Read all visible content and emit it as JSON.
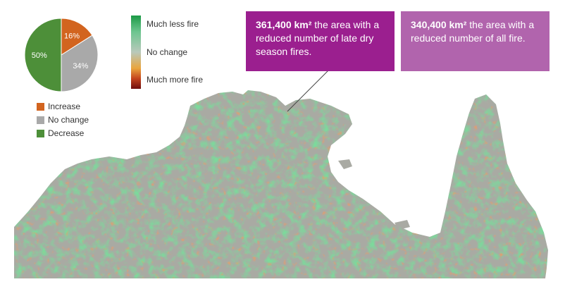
{
  "colors": {
    "increase": "#d2641f",
    "no_change": "#a9a9a9",
    "decrease": "#4d8f39",
    "callout1": "#9b1f8f",
    "callout2": "#b164ad",
    "sea": "#ffffff",
    "land_base": "#a9aaa3",
    "fire_less": "#3bb35a",
    "fire_more": "#c8522a"
  },
  "chart_data": {
    "type": "pie",
    "slices": [
      {
        "label": "Increase",
        "value": 16,
        "value_label": "16%"
      },
      {
        "label": "No change",
        "value": 34,
        "value_label": "34%"
      },
      {
        "label": "Decrease",
        "value": 50,
        "value_label": "50%"
      }
    ]
  },
  "pie_legend": [
    "Increase",
    "No change",
    "Decrease"
  ],
  "scale": {
    "top": "Much less fire",
    "middle": "No change",
    "bottom": "Much more fire"
  },
  "callouts": [
    {
      "value": "361,400 km²",
      "text": " the area with a reduced number of late dry season fires."
    },
    {
      "value": "340,400 km²",
      "text": " the area with a reduced number of all fire."
    }
  ]
}
